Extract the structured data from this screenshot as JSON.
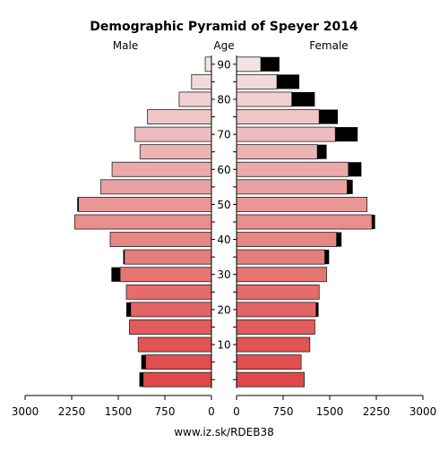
{
  "chart_data": {
    "type": "bar",
    "title": "Demographic Pyramid of Speyer 2014",
    "left_label": "Male",
    "center_label": "Age",
    "right_label": "Female",
    "source": "www.iz.sk/RDEB38",
    "age_ticks": [
      "10",
      "20",
      "30",
      "40",
      "50",
      "60",
      "70",
      "80",
      "90"
    ],
    "x_ticks_left": [
      "3000",
      "2250",
      "1500",
      "750",
      "0"
    ],
    "x_ticks_right": [
      "0",
      "750",
      "1500",
      "2250",
      "3000"
    ],
    "x_max": 3000,
    "age_groups": [
      "0-4",
      "5-9",
      "10-14",
      "15-19",
      "20-24",
      "25-29",
      "30-34",
      "35-39",
      "40-44",
      "45-49",
      "50-54",
      "55-59",
      "60-64",
      "65-69",
      "70-74",
      "75-79",
      "80-84",
      "85-89",
      "90+"
    ],
    "series": [
      {
        "name": "Male",
        "values": [
          1100,
          1060,
          1180,
          1320,
          1300,
          1370,
          1470,
          1400,
          1630,
          2200,
          2140,
          1780,
          1600,
          1150,
          1230,
          1030,
          520,
          320,
          100
        ],
        "excess": [
          60,
          70,
          0,
          0,
          70,
          0,
          140,
          20,
          0,
          0,
          20,
          0,
          0,
          0,
          0,
          0,
          0,
          0,
          0
        ]
      },
      {
        "name": "Female",
        "values": [
          1090,
          1040,
          1180,
          1260,
          1280,
          1330,
          1450,
          1420,
          1610,
          2180,
          2100,
          1780,
          1800,
          1300,
          1590,
          1330,
          890,
          650,
          390
        ],
        "excess": [
          0,
          0,
          0,
          0,
          40,
          0,
          0,
          70,
          80,
          50,
          0,
          90,
          210,
          150,
          360,
          300,
          370,
          360,
          300
        ]
      }
    ]
  }
}
